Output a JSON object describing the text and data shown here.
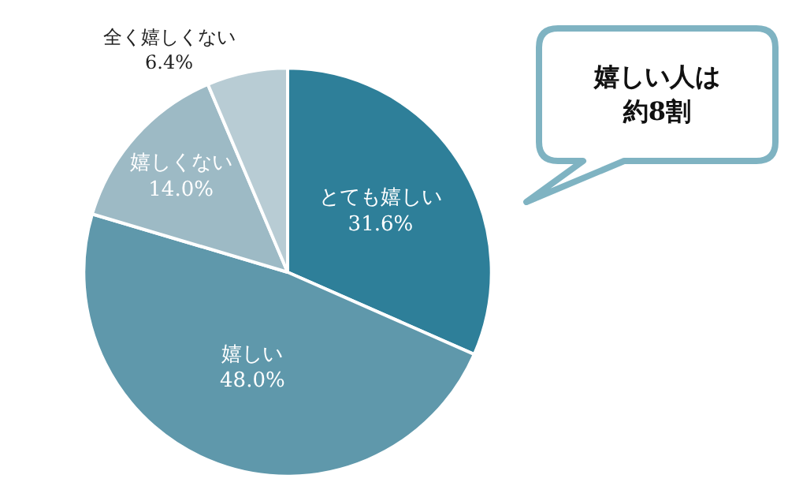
{
  "chart_data": {
    "type": "pie",
    "categories": [
      "とても嬉しい",
      "嬉しい",
      "嬉しくない",
      "全く嬉しくない"
    ],
    "values": [
      31.6,
      48.0,
      14.0,
      6.4
    ],
    "colors": [
      "#2e7f99",
      "#5f98ab",
      "#9dbac5",
      "#b8ccd4"
    ],
    "value_labels": [
      "31.6%",
      "48.0%",
      "14.0%",
      "6.4%"
    ],
    "annotations": [
      "嬉しい人は約8割"
    ],
    "legend": false
  }
}
